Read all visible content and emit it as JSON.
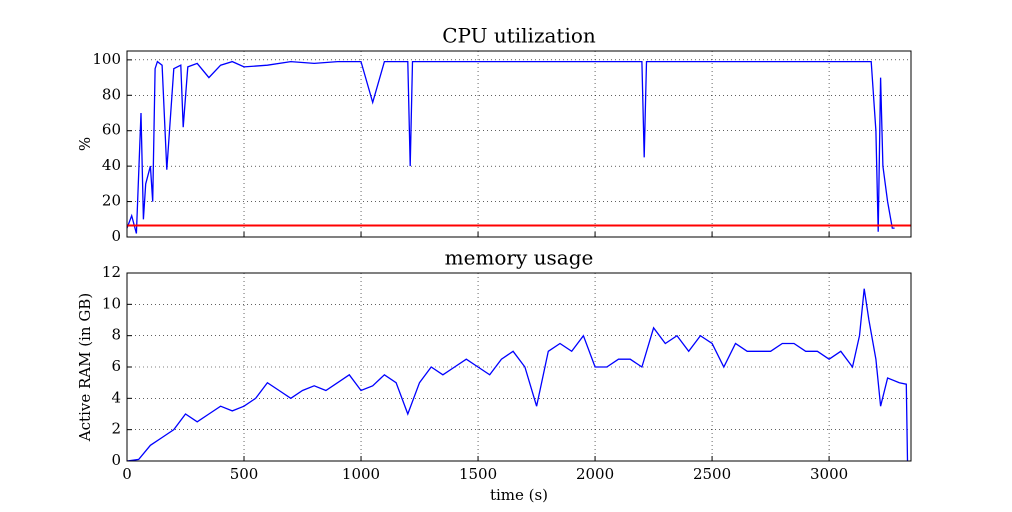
{
  "chart_data": [
    {
      "type": "line",
      "title": "CPU utilization",
      "y_label": "%",
      "x": [
        0,
        20,
        40,
        60,
        70,
        80,
        100,
        110,
        120,
        130,
        150,
        170,
        200,
        230,
        240,
        260,
        300,
        350,
        400,
        450,
        500,
        600,
        700,
        800,
        900,
        1000,
        1050,
        1100,
        1200,
        1210,
        1220,
        1300,
        1500,
        1800,
        2100,
        2200,
        2210,
        2220,
        2400,
        2700,
        3000,
        3180,
        3200,
        3210,
        3220,
        3230,
        3250,
        3270,
        3280,
        3350
      ],
      "series": [
        {
          "color": "#0000ff",
          "values": [
            5,
            12,
            2,
            70,
            10,
            30,
            40,
            20,
            95,
            99,
            97,
            38,
            95,
            97,
            62,
            96,
            98,
            90,
            97,
            99,
            96,
            97,
            99,
            98,
            99,
            99,
            76,
            99,
            99,
            40,
            99,
            99,
            99,
            99,
            99,
            99,
            45,
            99,
            99,
            99,
            99,
            99,
            60,
            3,
            90,
            40,
            20,
            5,
            5,
            null
          ]
        },
        {
          "color": "#ff0000",
          "values": [
            6.5,
            6.5,
            6.5,
            6.5,
            6.5,
            6.5,
            6.5,
            6.5,
            6.5,
            6.5,
            6.5,
            6.5,
            6.5,
            6.5,
            6.5,
            6.5,
            6.5,
            6.5,
            6.5,
            6.5,
            6.5,
            6.5,
            6.5,
            6.5,
            6.5,
            6.5,
            6.5,
            6.5,
            6.5,
            6.5,
            6.5,
            6.5,
            6.5,
            6.5,
            6.5,
            6.5,
            6.5,
            6.5,
            6.5,
            6.5,
            6.5,
            6.5,
            6.5,
            6.5,
            6.5,
            6.5,
            6.5,
            6.5,
            6.5,
            6.5
          ]
        }
      ],
      "xlim": [
        0,
        3350
      ],
      "xticks": [
        0,
        500,
        1000,
        1500,
        2000,
        2500,
        3000
      ],
      "show_xtick_labels": false,
      "ylim": [
        0,
        105
      ],
      "yticks": [
        0,
        20,
        40,
        60,
        80,
        100
      ],
      "grid": true
    },
    {
      "type": "line",
      "title": "memory usage",
      "y_label": "Active RAM (in GB)",
      "x_label": "time (s)",
      "x": [
        0,
        50,
        100,
        150,
        200,
        250,
        300,
        350,
        400,
        450,
        500,
        550,
        600,
        650,
        700,
        750,
        800,
        850,
        900,
        950,
        1000,
        1050,
        1100,
        1150,
        1200,
        1250,
        1300,
        1350,
        1400,
        1450,
        1500,
        1550,
        1600,
        1650,
        1700,
        1750,
        1800,
        1850,
        1900,
        1950,
        2000,
        2050,
        2100,
        2150,
        2200,
        2250,
        2300,
        2350,
        2400,
        2450,
        2500,
        2550,
        2600,
        2650,
        2700,
        2750,
        2800,
        2850,
        2900,
        2950,
        3000,
        3050,
        3100,
        3130,
        3150,
        3170,
        3200,
        3220,
        3250,
        3300,
        3330,
        3335
      ],
      "series": [
        {
          "color": "#0000ff",
          "values": [
            0,
            0.1,
            1,
            1.5,
            2,
            3,
            2.5,
            3,
            3.5,
            3.2,
            3.5,
            4,
            5,
            4.5,
            4,
            4.5,
            4.8,
            4.5,
            5,
            5.5,
            4.5,
            4.8,
            5.5,
            5,
            3,
            5,
            6,
            5.5,
            6,
            6.5,
            6,
            5.5,
            6.5,
            7,
            6,
            3.5,
            7,
            7.5,
            7,
            8,
            6,
            6,
            6.5,
            6.5,
            6,
            8.5,
            7.5,
            8,
            7,
            8,
            7.5,
            6,
            7.5,
            7,
            7,
            7,
            7.5,
            7.5,
            7,
            7,
            6.5,
            7,
            6,
            8,
            11,
            9,
            6.5,
            3.5,
            5.3,
            5,
            4.9,
            0
          ]
        }
      ],
      "xlim": [
        0,
        3350
      ],
      "xticks": [
        0,
        500,
        1000,
        1500,
        2000,
        2500,
        3000
      ],
      "show_xtick_labels": true,
      "ylim": [
        0,
        12
      ],
      "yticks": [
        0,
        2,
        4,
        6,
        8,
        10,
        12
      ],
      "grid": true
    }
  ]
}
